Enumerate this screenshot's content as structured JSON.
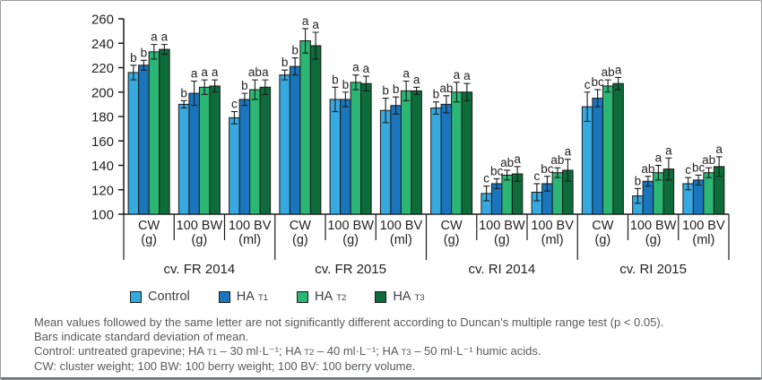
{
  "figure": {
    "background": "#ffffff",
    "border_color": "#9a9c9e",
    "bottom_rule_color": "#6d6e71",
    "axis_color": "#1a1a1a",
    "text_color": "#231f20",
    "footnote_color": "#58595b"
  },
  "chart_data": {
    "type": "bar",
    "title": "",
    "xlabel": "",
    "ylabel": "",
    "ylim": [
      100,
      260
    ],
    "yticks": [
      100,
      120,
      140,
      160,
      180,
      200,
      220,
      240,
      260
    ],
    "grid": false,
    "legend_position": "bottom",
    "error_bars": "standard deviation of mean",
    "series": [
      {
        "name": "Control",
        "name_sub": "",
        "color": "#36a9e1"
      },
      {
        "name": "HA",
        "name_sub": "T1",
        "color": "#1b75bc"
      },
      {
        "name": "HA",
        "name_sub": "T2",
        "color": "#2bb673"
      },
      {
        "name": "HA",
        "name_sub": "T3",
        "color": "#0e6b3a"
      }
    ],
    "groups": [
      {
        "label": "cv. FR 2014",
        "subgroups": [
          {
            "label": "CW",
            "unit": "(g)",
            "values": [
              216,
              222,
              233,
              235
            ],
            "errors": [
              6,
              4,
              6,
              4
            ],
            "letters": [
              "b",
              "b",
              "a",
              "a"
            ]
          },
          {
            "label": "100 BW",
            "unit": "(g)",
            "values": [
              190,
              199,
              204,
              205
            ],
            "errors": [
              3,
              10,
              6,
              5
            ],
            "letters": [
              "b",
              "a",
              "a",
              "a"
            ]
          },
          {
            "label": "100 BV",
            "unit": "(ml)",
            "values": [
              179,
              194,
              202,
              204
            ],
            "errors": [
              5,
              5,
              8,
              6
            ],
            "letters": [
              "c",
              "b",
              "ab",
              "a"
            ]
          }
        ]
      },
      {
        "label": "cv. FR 2015",
        "subgroups": [
          {
            "label": "CW",
            "unit": "(g)",
            "values": [
              214,
              221,
              242,
              238
            ],
            "errors": [
              4,
              7,
              10,
              11
            ],
            "letters": [
              "b",
              "b",
              "a",
              "a"
            ]
          },
          {
            "label": "100 BW",
            "unit": "(g)",
            "values": [
              194,
              194,
              208,
              207
            ],
            "errors": [
              10,
              6,
              6,
              6
            ],
            "letters": [
              "b",
              "b",
              "a",
              "a"
            ]
          },
          {
            "label": "100 BV",
            "unit": "(ml)",
            "values": [
              185,
              189,
              201,
              201
            ],
            "errors": [
              10,
              7,
              8,
              3
            ],
            "letters": [
              "b",
              "b",
              "a",
              "a"
            ]
          }
        ]
      },
      {
        "label": "cv. RI 2014",
        "subgroups": [
          {
            "label": "CW",
            "unit": "(g)",
            "values": [
              187,
              190,
              200,
              200
            ],
            "errors": [
              5,
              7,
              8,
              7
            ],
            "letters": [
              "b",
              "ab",
              "a",
              "a"
            ]
          },
          {
            "label": "100 BW",
            "unit": "(g)",
            "values": [
              117,
              125,
              132,
              133
            ],
            "errors": [
              6,
              4,
              4,
              6
            ],
            "letters": [
              "c",
              "bc",
              "ab",
              "a"
            ]
          },
          {
            "label": "100 BV",
            "unit": "(ml)",
            "values": [
              118,
              125,
              134,
              136
            ],
            "errors": [
              7,
              6,
              4,
              9
            ],
            "letters": [
              "c",
              "bc",
              "ab",
              "a"
            ]
          }
        ]
      },
      {
        "label": "cv. RI 2015",
        "subgroups": [
          {
            "label": "CW",
            "unit": "(g)",
            "values": [
              188,
              195,
              205,
              207
            ],
            "errors": [
              12,
              7,
              5,
              5
            ],
            "letters": [
              "c",
              "bc",
              "ab",
              "a"
            ]
          },
          {
            "label": "100 BW",
            "unit": "(g)",
            "values": [
              115,
              127,
              134,
              137
            ],
            "errors": [
              6,
              4,
              6,
              9
            ],
            "letters": [
              "b",
              "ab",
              "a",
              "a"
            ]
          },
          {
            "label": "100 BV",
            "unit": "(ml)",
            "values": [
              125,
              128,
              134,
              139
            ],
            "errors": [
              5,
              4,
              4,
              8
            ],
            "letters": [
              "c",
              "bc",
              "ab",
              "a"
            ]
          }
        ]
      }
    ]
  },
  "footnotes": {
    "line1": "Mean values followed by the same letter are not significantly different according to Duncan’s multiple range test (p < 0.05).",
    "line2": "Bars indicate standard deviation of mean.",
    "line3_parts": {
      "a": "Control: untreated grapevine; HA ",
      "a_sub": "T1",
      "b": " – 30 ml·L⁻¹; HA ",
      "b_sub": "T2",
      "c": " – 40 ml·L⁻¹; HA ",
      "c_sub": "T3",
      "d": " – 50 ml·L⁻¹ humic acids."
    },
    "line4": "CW: cluster weight; 100 BW: 100 berry weight; 100 BV: 100 berry volume."
  }
}
